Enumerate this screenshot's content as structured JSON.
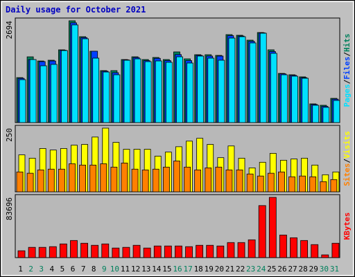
{
  "chart_data": {
    "type": "bar",
    "title": "Daily usage for October 2021",
    "categories": [
      "1",
      "2",
      "3",
      "4",
      "5",
      "6",
      "7",
      "8",
      "9",
      "10",
      "11",
      "12",
      "13",
      "14",
      "15",
      "16",
      "17",
      "18",
      "19",
      "20",
      "21",
      "22",
      "23",
      "24",
      "25",
      "26",
      "27",
      "28",
      "29",
      "30",
      "31"
    ],
    "category_colors": [
      "#000000",
      "#00805c",
      "#00805c",
      "#000000",
      "#000000",
      "#000000",
      "#000000",
      "#000000",
      "#00805c",
      "#00805c",
      "#000000",
      "#000000",
      "#000000",
      "#000000",
      "#000000",
      "#00805c",
      "#00805c",
      "#000000",
      "#000000",
      "#000000",
      "#000000",
      "#000000",
      "#00805c",
      "#00805c",
      "#000000",
      "#000000",
      "#000000",
      "#000000",
      "#000000",
      "#00805c",
      "#00805c"
    ],
    "legend_separator": "/",
    "panels": [
      {
        "ylim": [
          0,
          2694
        ],
        "yticks": [
          2694
        ],
        "series": [
          {
            "name": "Hits",
            "color": "#00805c",
            "values": [
              1190,
              1740,
              1630,
              1650,
              1925,
              2694,
              2273,
              1888,
              1375,
              1375,
              1668,
              1741,
              1668,
              1723,
              1668,
              1870,
              1686,
              1796,
              1796,
              1778,
              2328,
              2310,
              2181,
              2383,
              1925,
              1301,
              1265,
              1210,
              495,
              458,
              641
            ]
          },
          {
            "name": "Files",
            "color": "#0040ff",
            "values": [
              1170,
              1668,
              1613,
              1630,
              1915,
              2640,
              2250,
              1888,
              1360,
              1320,
              1660,
              1720,
              1640,
              1700,
              1640,
              1800,
              1640,
              1780,
              1760,
              1760,
              2300,
              2290,
              2150,
              2375,
              1880,
              1290,
              1250,
              1190,
              480,
              430,
              620
            ]
          },
          {
            "name": "Pages",
            "color": "#00e0ff",
            "values": [
              1136,
              1668,
              1503,
              1540,
              1906,
              2585,
              2218,
              1705,
              1338,
              1265,
              1650,
              1686,
              1613,
              1631,
              1595,
              1741,
              1576,
              1760,
              1705,
              1650,
              2236,
              2273,
              2108,
              2365,
              1833,
              1265,
              1228,
              1173,
              458,
              403,
              586
            ]
          }
        ]
      },
      {
        "ylim": [
          0,
          250
        ],
        "yticks": [
          250
        ],
        "series": [
          {
            "name": "Visits",
            "color": "#ffff00",
            "values": [
              145,
              132,
              170,
              164,
              170,
              183,
              186,
              215,
              250,
              194,
              167,
              167,
              167,
              140,
              156,
              177,
              199,
              210,
              186,
              134,
              180,
              132,
              94,
              116,
              151,
              124,
              129,
              132,
              105,
              67,
              78
            ]
          },
          {
            "name": "Sites",
            "color": "#ff8000",
            "values": [
              78,
              73,
              86,
              89,
              89,
              110,
              105,
              105,
              110,
              97,
              113,
              89,
              86,
              89,
              97,
              121,
              97,
              86,
              94,
              97,
              86,
              86,
              70,
              62,
              73,
              78,
              59,
              62,
              59,
              40,
              48
            ]
          }
        ]
      },
      {
        "ylim": [
          0,
          83696
        ],
        "yticks": [
          83696
        ],
        "series": [
          {
            "name": "KBytes",
            "color": "#ff0000",
            "values": [
              9510,
              14265,
              14265,
              15216,
              19020,
              23775,
              19971,
              17118,
              19020,
              13314,
              14265,
              17118,
              13314,
              16167,
              16167,
              16167,
              15216,
              17118,
              17118,
              16167,
              20922,
              20922,
              24726,
              72276,
              83696,
              31383,
              27579,
              23775,
              18069,
              3804,
              19971
            ]
          }
        ]
      }
    ]
  }
}
